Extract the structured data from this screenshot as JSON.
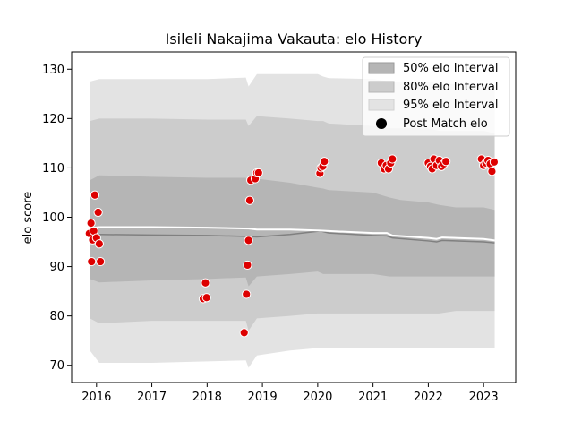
{
  "chart_data": {
    "type": "line",
    "title": "Isileli Nakajima Vakauta: elo History",
    "xlabel": "",
    "ylabel": "elo score",
    "xlim": [
      2015.55,
      2023.58
    ],
    "ylim": [
      66.5,
      133.5
    ],
    "x_ticks": [
      2016,
      2017,
      2018,
      2019,
      2020,
      2021,
      2022,
      2023
    ],
    "x_tick_labels": [
      "2016",
      "2017",
      "2018",
      "2019",
      "2020",
      "2021",
      "2022",
      "2023"
    ],
    "y_ticks": [
      70,
      80,
      90,
      100,
      110,
      120,
      130
    ],
    "y_tick_labels": [
      "70",
      "80",
      "90",
      "100",
      "110",
      "120",
      "130"
    ],
    "colors": {
      "band95": "#e3e3e3",
      "band80": "#cccccc",
      "band50": "#b5b5b5",
      "median": "#808080",
      "mean": "#ffffff",
      "points": "#dd0000",
      "point_edge": "#ffffff"
    },
    "legend": {
      "position": "top-right",
      "entries": [
        {
          "label": "50% elo Interval",
          "kind": "band50"
        },
        {
          "label": "80% elo Interval",
          "kind": "band80"
        },
        {
          "label": "95% elo Interval",
          "kind": "band95"
        },
        {
          "label": "Post Match elo",
          "kind": "point"
        }
      ]
    },
    "bands": {
      "x": [
        2015.88,
        2016.05,
        2017.0,
        2018.0,
        2018.7,
        2018.75,
        2018.9,
        2019.5,
        2020.0,
        2020.1,
        2020.2,
        2021.0,
        2021.3,
        2021.5,
        2022.0,
        2022.2,
        2022.5,
        2023.0,
        2023.2
      ],
      "p95_hi": [
        127.5,
        128.0,
        128.0,
        128.0,
        128.3,
        126.5,
        129.0,
        129.0,
        129.0,
        128.5,
        128.2,
        128.0,
        127.5,
        127.5,
        127.5,
        127.0,
        127.0,
        127.0,
        126.5
      ],
      "p80_hi": [
        119.5,
        120.0,
        120.0,
        119.8,
        119.8,
        118.5,
        120.5,
        120.0,
        119.5,
        119.5,
        119.0,
        118.5,
        118.0,
        118.0,
        118.0,
        117.5,
        117.5,
        117.5,
        117.0
      ],
      "p50_hi": [
        107.5,
        108.5,
        108.2,
        108.0,
        108.0,
        106.8,
        107.8,
        107.0,
        106.0,
        105.8,
        105.5,
        105.0,
        104.0,
        103.5,
        103.0,
        102.5,
        102.0,
        102.0,
        101.5
      ],
      "p50_lo": [
        87.5,
        86.8,
        87.2,
        87.5,
        87.8,
        86.0,
        88.0,
        88.5,
        89.0,
        88.5,
        88.5,
        88.5,
        88.0,
        88.0,
        88.0,
        88.0,
        88.0,
        88.0,
        88.0
      ],
      "p80_lo": [
        79.5,
        78.5,
        79.0,
        79.0,
        79.0,
        77.0,
        79.5,
        80.0,
        80.5,
        80.5,
        80.5,
        80.5,
        80.5,
        80.5,
        80.5,
        80.5,
        81.0,
        81.0,
        81.0
      ],
      "p95_lo": [
        73.0,
        70.5,
        70.5,
        70.8,
        71.0,
        69.5,
        72.0,
        73.0,
        73.5,
        73.5,
        73.5,
        73.5,
        73.5,
        73.5,
        73.5,
        73.5,
        73.5,
        73.5,
        73.5
      ]
    },
    "median_line": {
      "x": [
        2015.88,
        2016.05,
        2017.0,
        2018.0,
        2018.75,
        2018.9,
        2019.5,
        2020.05,
        2020.2,
        2021.0,
        2021.25,
        2021.35,
        2022.0,
        2022.15,
        2022.25,
        2023.0,
        2023.2
      ],
      "y": [
        96.5,
        96.5,
        96.4,
        96.3,
        96.1,
        96.0,
        96.5,
        97.2,
        96.8,
        96.3,
        96.2,
        95.8,
        95.2,
        95.0,
        95.3,
        95.0,
        94.8
      ]
    },
    "mean_line": {
      "x": [
        2015.88,
        2016.05,
        2017.0,
        2018.0,
        2018.75,
        2018.9,
        2019.5,
        2020.05,
        2020.2,
        2021.0,
        2021.25,
        2021.35,
        2022.0,
        2022.15,
        2022.25,
        2023.0,
        2023.2
      ],
      "y": [
        97.8,
        98.0,
        98.0,
        97.9,
        97.7,
        97.5,
        97.5,
        97.3,
        97.2,
        96.8,
        96.8,
        96.3,
        95.8,
        95.6,
        95.9,
        95.6,
        95.3
      ]
    },
    "points": [
      {
        "x": 2015.87,
        "y": 96.7
      },
      {
        "x": 2015.9,
        "y": 98.8
      },
      {
        "x": 2015.91,
        "y": 91.0
      },
      {
        "x": 2015.93,
        "y": 95.4
      },
      {
        "x": 2015.95,
        "y": 97.2
      },
      {
        "x": 2015.97,
        "y": 104.5
      },
      {
        "x": 2016.0,
        "y": 95.8
      },
      {
        "x": 2016.03,
        "y": 101.0
      },
      {
        "x": 2016.05,
        "y": 94.6
      },
      {
        "x": 2016.07,
        "y": 91.0
      },
      {
        "x": 2017.93,
        "y": 83.5
      },
      {
        "x": 2017.97,
        "y": 86.7
      },
      {
        "x": 2017.99,
        "y": 83.7
      },
      {
        "x": 2018.67,
        "y": 76.6
      },
      {
        "x": 2018.71,
        "y": 84.4
      },
      {
        "x": 2018.73,
        "y": 90.3
      },
      {
        "x": 2018.75,
        "y": 95.3
      },
      {
        "x": 2018.77,
        "y": 103.4
      },
      {
        "x": 2018.79,
        "y": 107.5
      },
      {
        "x": 2018.87,
        "y": 107.8
      },
      {
        "x": 2018.9,
        "y": 109.0
      },
      {
        "x": 2018.93,
        "y": 109.0
      },
      {
        "x": 2020.04,
        "y": 108.9
      },
      {
        "x": 2020.06,
        "y": 110.0
      },
      {
        "x": 2020.09,
        "y": 110.3
      },
      {
        "x": 2020.12,
        "y": 111.3
      },
      {
        "x": 2021.15,
        "y": 111.0
      },
      {
        "x": 2021.2,
        "y": 109.8
      },
      {
        "x": 2021.24,
        "y": 110.5
      },
      {
        "x": 2021.28,
        "y": 109.8
      },
      {
        "x": 2021.32,
        "y": 111.0
      },
      {
        "x": 2021.35,
        "y": 111.8
      },
      {
        "x": 2022.0,
        "y": 111.0
      },
      {
        "x": 2022.04,
        "y": 110.3
      },
      {
        "x": 2022.07,
        "y": 109.8
      },
      {
        "x": 2022.1,
        "y": 111.8
      },
      {
        "x": 2022.15,
        "y": 110.5
      },
      {
        "x": 2022.2,
        "y": 111.5
      },
      {
        "x": 2022.24,
        "y": 110.3
      },
      {
        "x": 2022.28,
        "y": 110.8
      },
      {
        "x": 2022.32,
        "y": 111.3
      },
      {
        "x": 2022.96,
        "y": 111.8
      },
      {
        "x": 2023.0,
        "y": 110.5
      },
      {
        "x": 2023.04,
        "y": 111.0
      },
      {
        "x": 2023.08,
        "y": 111.5
      },
      {
        "x": 2023.12,
        "y": 110.8
      },
      {
        "x": 2023.15,
        "y": 109.3
      },
      {
        "x": 2023.19,
        "y": 111.2
      }
    ]
  }
}
